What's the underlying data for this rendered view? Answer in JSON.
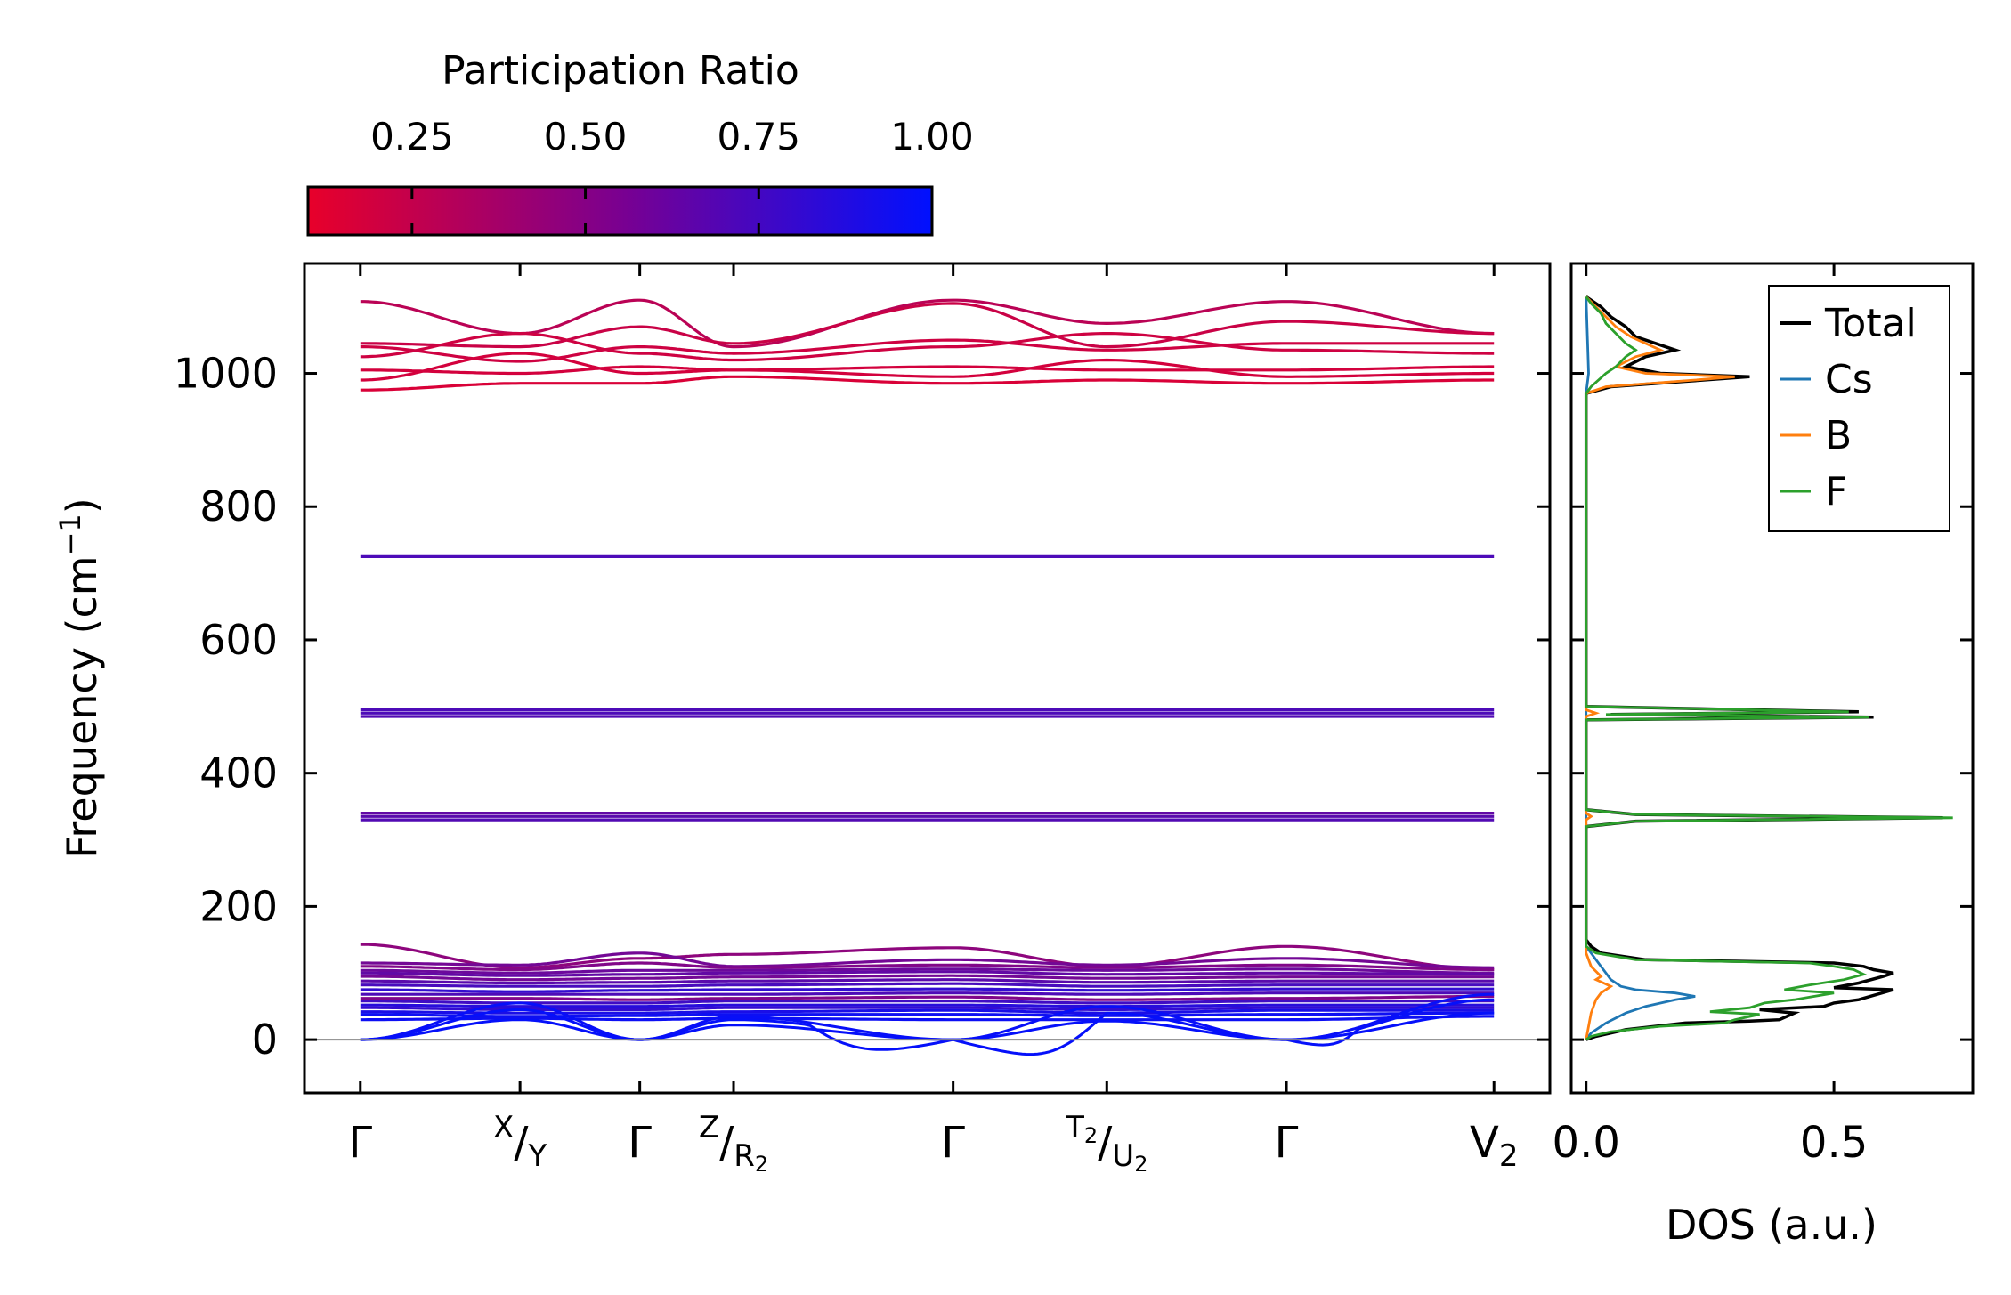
{
  "colorbar": {
    "title": "Participation Ratio",
    "ticks": [
      0.25,
      0.5,
      0.75,
      1.0
    ],
    "tick_labels": [
      "0.25",
      "0.50",
      "0.75",
      "1.00"
    ],
    "range": [
      0.1,
      1.0
    ],
    "colors": [
      "#e8002a",
      "#0010ff"
    ]
  },
  "chart_data": [
    {
      "type": "line",
      "name": "phonon-band-structure",
      "ylabel_main": "Frequency (cm",
      "ylabel_sup": "−1",
      "ylabel_end": ")",
      "ylim": [
        -80,
        1165
      ],
      "yticks": [
        0,
        200,
        400,
        600,
        800,
        1000
      ],
      "ytick_labels": [
        "0",
        "200",
        "400",
        "600",
        "800",
        "1000"
      ],
      "zero_line": true,
      "segments": [
        {
          "from": 0.0,
          "to": 0.8,
          "label_start": "Γ",
          "label_end_main": "",
          "label_end_sup": "X",
          "label_end_slash": "/",
          "label_end_base": "Y"
        },
        {
          "from": 0.8,
          "to": 1.4
        },
        {
          "from": 1.4,
          "to": 1.87
        },
        {
          "from": 1.87,
          "to": 2.97
        },
        {
          "from": 2.97,
          "to": 3.74
        },
        {
          "from": 3.74,
          "to": 4.64
        },
        {
          "from": 4.64,
          "to": 5.68
        }
      ],
      "kticks": [
        {
          "x": 0.0,
          "label": "Γ"
        },
        {
          "x": 0.8,
          "label_pre": "X",
          "label_slash": "/",
          "label_post": "Y"
        },
        {
          "x": 1.4,
          "label": "Γ"
        },
        {
          "x": 1.87,
          "label_pre": "Z",
          "label_slash": "/",
          "label_post": "R",
          "label_post_sub": "2"
        },
        {
          "x": 2.97,
          "label": "Γ"
        },
        {
          "x": 3.74,
          "label_pre": "T",
          "label_pre_sub": "2",
          "label_slash": "/",
          "label_post": "U",
          "label_post_sub": "2"
        },
        {
          "x": 4.64,
          "label": "Γ"
        },
        {
          "x": 5.68,
          "label": "V",
          "label_sub": "2"
        }
      ],
      "xlim": [
        -0.28,
        5.96
      ],
      "high_bands": [
        {
          "values": [
            1108,
            1060,
            1110,
            1040,
            1110,
            1075,
            1108,
            1060
          ],
          "pr": 0.28
        },
        {
          "values": [
            1045,
            1040,
            1070,
            1045,
            1105,
            1040,
            1078,
            1060
          ],
          "pr": 0.22
        },
        {
          "values": [
            1040,
            1018,
            1040,
            1030,
            1050,
            1035,
            1045,
            1045
          ],
          "pr": 0.2
        },
        {
          "values": [
            1025,
            1060,
            1030,
            1020,
            1040,
            1060,
            1035,
            1030
          ],
          "pr": 0.2
        },
        {
          "values": [
            1005,
            1000,
            1010,
            1005,
            1010,
            1005,
            1005,
            1010
          ],
          "pr": 0.18
        },
        {
          "values": [
            990,
            1030,
            1000,
            1005,
            995,
            1020,
            995,
            1000
          ],
          "pr": 0.18
        },
        {
          "values": [
            975,
            985,
            985,
            995,
            985,
            990,
            985,
            990
          ],
          "pr": 0.16
        }
      ],
      "flat_bands": [
        {
          "value": 725,
          "pr": 0.7
        },
        {
          "value": 495,
          "pr": 0.7
        },
        {
          "value": 490,
          "pr": 0.7
        },
        {
          "value": 485,
          "pr": 0.68
        },
        {
          "value": 340,
          "pr": 0.62
        },
        {
          "value": 335,
          "pr": 0.65
        },
        {
          "value": 330,
          "pr": 0.68
        }
      ],
      "low_bands": [
        {
          "values": [
            143,
            108,
            122,
            128,
            138,
            110,
            140,
            105
          ],
          "pr": 0.45
        },
        {
          "values": [
            115,
            112,
            130,
            110,
            120,
            112,
            122,
            108
          ],
          "pr": 0.55
        },
        {
          "values": [
            110,
            105,
            115,
            108,
            112,
            108,
            112,
            105
          ],
          "pr": 0.5
        },
        {
          "values": [
            104,
            100,
            104,
            104,
            106,
            104,
            106,
            100
          ],
          "pr": 0.58
        },
        {
          "values": [
            100,
            96,
            98,
            100,
            102,
            98,
            100,
            98
          ],
          "pr": 0.62
        },
        {
          "values": [
            95,
            90,
            92,
            94,
            96,
            92,
            94,
            94
          ],
          "pr": 0.55
        },
        {
          "values": [
            88,
            85,
            86,
            88,
            90,
            86,
            88,
            88
          ],
          "pr": 0.65
        },
        {
          "values": [
            82,
            80,
            80,
            82,
            84,
            80,
            82,
            82
          ],
          "pr": 0.72
        },
        {
          "values": [
            75,
            72,
            74,
            75,
            76,
            74,
            76,
            76
          ],
          "pr": 0.8
        },
        {
          "values": [
            68,
            68,
            68,
            68,
            70,
            68,
            70,
            70
          ],
          "pr": 0.7
        },
        {
          "values": [
            62,
            62,
            60,
            62,
            64,
            60,
            62,
            65
          ],
          "pr": 0.5
        },
        {
          "values": [
            58,
            55,
            55,
            58,
            58,
            55,
            58,
            58
          ],
          "pr": 0.75
        },
        {
          "values": [
            52,
            50,
            50,
            52,
            52,
            50,
            52,
            52
          ],
          "pr": 0.85
        },
        {
          "values": [
            48,
            45,
            45,
            48,
            48,
            45,
            48,
            48
          ],
          "pr": 0.8
        },
        {
          "values": [
            42,
            40,
            40,
            42,
            44,
            40,
            44,
            44
          ],
          "pr": 0.9
        },
        {
          "values": [
            38,
            35,
            36,
            38,
            38,
            36,
            38,
            40
          ],
          "pr": 0.95
        },
        {
          "values": [
            30,
            32,
            30,
            32,
            30,
            30,
            30,
            35
          ],
          "pr": 0.95
        }
      ],
      "acoustic": [
        {
          "values": [
            0,
            45,
            0,
            30,
            0,
            40,
            0,
            60
          ],
          "pr": 0.98
        },
        {
          "values": [
            0,
            55,
            0,
            35,
            0,
            50,
            0,
            68
          ],
          "pr": 0.97
        },
        {
          "values": [
            0,
            30,
            0,
            22,
            0,
            28,
            0,
            40
          ],
          "pr": 0.98
        }
      ],
      "dips": [
        {
          "from": 2.25,
          "to": 2.97,
          "depth": -15,
          "pr": 0.9
        },
        {
          "from": 2.97,
          "to": 3.74,
          "depth": -22,
          "pr": 0.9
        },
        {
          "from": 4.64,
          "to": 5.0,
          "depth": -8,
          "pr": 0.92
        }
      ]
    },
    {
      "type": "line",
      "name": "density-of-states",
      "xlabel": "DOS (a.u.)",
      "xlim": [
        -0.03,
        0.78
      ],
      "xticks": [
        0.0,
        0.5
      ],
      "xtick_labels": [
        "0.0",
        "0.5"
      ],
      "ylim": [
        -80,
        1165
      ],
      "series": [
        {
          "name": "Total",
          "color": "#000000",
          "points": [
            [
              0,
              0
            ],
            [
              0.02,
              5
            ],
            [
              0.08,
              15
            ],
            [
              0.2,
              25
            ],
            [
              0.33,
              28
            ],
            [
              0.39,
              30
            ],
            [
              0.42,
              40
            ],
            [
              0.35,
              45
            ],
            [
              0.48,
              50
            ],
            [
              0.5,
              55
            ],
            [
              0.55,
              60
            ],
            [
              0.62,
              75
            ],
            [
              0.5,
              78
            ],
            [
              0.55,
              85
            ],
            [
              0.6,
              95
            ],
            [
              0.62,
              100
            ],
            [
              0.58,
              105
            ],
            [
              0.56,
              110
            ],
            [
              0.5,
              115
            ],
            [
              0.12,
              120
            ],
            [
              0.03,
              130
            ],
            [
              0.01,
              140
            ],
            [
              0,
              150
            ],
            [
              0,
              320
            ],
            [
              0.1,
              328
            ],
            [
              0.72,
              333
            ],
            [
              0.1,
              338
            ],
            [
              0,
              345
            ],
            [
              0,
              480
            ],
            [
              0.58,
              484
            ],
            [
              0.05,
              488
            ],
            [
              0.55,
              492
            ],
            [
              0,
              500
            ],
            [
              0,
              970
            ],
            [
              0.05,
              980
            ],
            [
              0.2,
              988
            ],
            [
              0.33,
              995
            ],
            [
              0.15,
              1000
            ],
            [
              0.08,
              1010
            ],
            [
              0.12,
              1025
            ],
            [
              0.18,
              1035
            ],
            [
              0.14,
              1045
            ],
            [
              0.1,
              1055
            ],
            [
              0.08,
              1070
            ],
            [
              0.05,
              1085
            ],
            [
              0.03,
              1100
            ],
            [
              0.01,
              1110
            ],
            [
              0,
              1115
            ]
          ]
        },
        {
          "name": "Cs",
          "color": "#1f77b4",
          "points": [
            [
              0,
              0
            ],
            [
              0.01,
              10
            ],
            [
              0.04,
              25
            ],
            [
              0.08,
              40
            ],
            [
              0.12,
              50
            ],
            [
              0.18,
              60
            ],
            [
              0.22,
              65
            ],
            [
              0.18,
              70
            ],
            [
              0.1,
              75
            ],
            [
              0.07,
              80
            ],
            [
              0.05,
              90
            ],
            [
              0.04,
              100
            ],
            [
              0.03,
              110
            ],
            [
              0.02,
              120
            ],
            [
              0.01,
              130
            ],
            [
              0,
              140
            ],
            [
              0,
              970
            ],
            [
              0.005,
              1000
            ],
            [
              0,
              1115
            ]
          ]
        },
        {
          "name": "B",
          "color": "#ff7f0e",
          "points": [
            [
              0,
              0
            ],
            [
              0.005,
              20
            ],
            [
              0.01,
              40
            ],
            [
              0.02,
              60
            ],
            [
              0.03,
              70
            ],
            [
              0.05,
              80
            ],
            [
              0.02,
              90
            ],
            [
              0.03,
              95
            ],
            [
              0.01,
              110
            ],
            [
              0,
              130
            ],
            [
              0,
              330
            ],
            [
              0.01,
              335
            ],
            [
              0,
              340
            ],
            [
              0,
              485
            ],
            [
              0.02,
              490
            ],
            [
              0,
              495
            ],
            [
              0,
              970
            ],
            [
              0.04,
              980
            ],
            [
              0.22,
              990
            ],
            [
              0.3,
              995
            ],
            [
              0.12,
              1000
            ],
            [
              0.06,
              1010
            ],
            [
              0.1,
              1025
            ],
            [
              0.15,
              1035
            ],
            [
              0.12,
              1045
            ],
            [
              0.09,
              1055
            ],
            [
              0.06,
              1070
            ],
            [
              0.04,
              1085
            ],
            [
              0.02,
              1100
            ],
            [
              0,
              1115
            ]
          ]
        },
        {
          "name": "F",
          "color": "#2ca02c",
          "points": [
            [
              0,
              0
            ],
            [
              0.01,
              5
            ],
            [
              0.05,
              12
            ],
            [
              0.15,
              20
            ],
            [
              0.28,
              25
            ],
            [
              0.3,
              30
            ],
            [
              0.35,
              38
            ],
            [
              0.25,
              42
            ],
            [
              0.33,
              48
            ],
            [
              0.36,
              55
            ],
            [
              0.42,
              60
            ],
            [
              0.5,
              70
            ],
            [
              0.4,
              75
            ],
            [
              0.45,
              82
            ],
            [
              0.52,
              90
            ],
            [
              0.56,
              98
            ],
            [
              0.54,
              105
            ],
            [
              0.5,
              110
            ],
            [
              0.45,
              115
            ],
            [
              0.1,
              120
            ],
            [
              0.02,
              130
            ],
            [
              0,
              140
            ],
            [
              0,
              320
            ],
            [
              0.1,
              328
            ],
            [
              0.74,
              333
            ],
            [
              0.1,
              338
            ],
            [
              0,
              345
            ],
            [
              0,
              480
            ],
            [
              0.57,
              484
            ],
            [
              0.04,
              488
            ],
            [
              0.53,
              492
            ],
            [
              0,
              500
            ],
            [
              0,
              970
            ],
            [
              0.01,
              980
            ],
            [
              0.04,
              1000
            ],
            [
              0.06,
              1010
            ],
            [
              0.08,
              1025
            ],
            [
              0.1,
              1035
            ],
            [
              0.08,
              1045
            ],
            [
              0.06,
              1060
            ],
            [
              0.04,
              1075
            ],
            [
              0.03,
              1090
            ],
            [
              0.01,
              1105
            ],
            [
              0,
              1115
            ]
          ]
        }
      ],
      "legend_position": "top-right"
    }
  ]
}
